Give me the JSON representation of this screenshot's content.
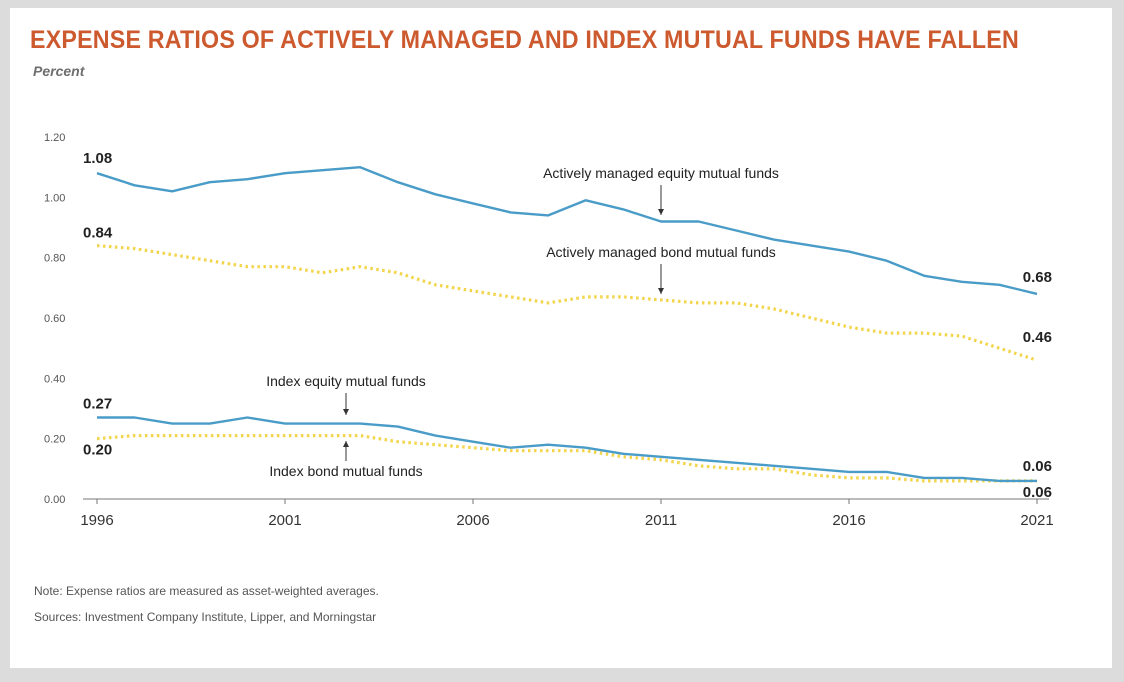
{
  "title": "EXPENSE RATIOS OF ACTIVELY MANAGED AND INDEX MUTUAL FUNDS HAVE FALLEN",
  "unit_label": "Percent",
  "note": "Note: Expense ratios are measured as asset-weighted averages.",
  "sources": "Sources: Investment Company Institute, Lipper, and Morningstar",
  "colors": {
    "title": "#cc5a2e",
    "solid_series": "#4a9cc8",
    "dotted_series": "#f2d54b"
  },
  "chart_data": {
    "type": "line",
    "title": "EXPENSE RATIOS OF ACTIVELY MANAGED AND INDEX MUTUAL FUNDS HAVE FALLEN",
    "ylabel": "Percent",
    "xlabel": "",
    "x": [
      1996,
      1997,
      1998,
      1999,
      2000,
      2001,
      2002,
      2003,
      2004,
      2005,
      2006,
      2007,
      2008,
      2009,
      2010,
      2011,
      2012,
      2013,
      2014,
      2015,
      2016,
      2017,
      2018,
      2019,
      2020,
      2021
    ],
    "xlim": [
      1996,
      2021
    ],
    "ylim": [
      0,
      1.2
    ],
    "x_ticks": [
      "1996",
      "2001",
      "2006",
      "2011",
      "2016",
      "2021"
    ],
    "y_ticks": [
      "0.00",
      "0.20",
      "0.40",
      "0.60",
      "0.80",
      "1.00",
      "1.20"
    ],
    "grid": false,
    "legend": "none",
    "series": [
      {
        "name": "Actively managed equity mutual funds",
        "style": "solid",
        "color": "#4a9cc8",
        "values": [
          1.08,
          1.04,
          1.02,
          1.05,
          1.06,
          1.08,
          1.09,
          1.1,
          1.05,
          1.01,
          0.98,
          0.95,
          0.94,
          0.99,
          0.96,
          0.92,
          0.92,
          0.89,
          0.86,
          0.84,
          0.82,
          0.79,
          0.74,
          0.72,
          0.71,
          0.68
        ],
        "start_label": "1.08",
        "end_label": "0.68"
      },
      {
        "name": "Actively managed bond mutual funds",
        "style": "dotted",
        "color": "#f2d54b",
        "values": [
          0.84,
          0.83,
          0.81,
          0.79,
          0.77,
          0.77,
          0.75,
          0.77,
          0.75,
          0.71,
          0.69,
          0.67,
          0.65,
          0.67,
          0.67,
          0.66,
          0.65,
          0.65,
          0.63,
          0.6,
          0.57,
          0.55,
          0.55,
          0.54,
          0.5,
          0.46
        ],
        "start_label": "0.84",
        "end_label": "0.46"
      },
      {
        "name": "Index equity mutual funds",
        "style": "solid",
        "color": "#4a9cc8",
        "values": [
          0.27,
          0.27,
          0.25,
          0.25,
          0.27,
          0.25,
          0.25,
          0.25,
          0.24,
          0.21,
          0.19,
          0.17,
          0.18,
          0.17,
          0.15,
          0.14,
          0.13,
          0.12,
          0.11,
          0.1,
          0.09,
          0.09,
          0.07,
          0.07,
          0.06,
          0.06
        ],
        "start_label": "0.27",
        "end_label": "0.06"
      },
      {
        "name": "Index bond mutual funds",
        "style": "dotted",
        "color": "#f2d54b",
        "values": [
          0.2,
          0.21,
          0.21,
          0.21,
          0.21,
          0.21,
          0.21,
          0.21,
          0.19,
          0.18,
          0.17,
          0.16,
          0.16,
          0.16,
          0.14,
          0.13,
          0.11,
          0.1,
          0.1,
          0.08,
          0.07,
          0.07,
          0.06,
          0.06,
          0.06,
          0.06
        ],
        "start_label": "0.20",
        "end_label": "0.06"
      }
    ],
    "annotations": [
      {
        "text": "Actively managed equity mutual funds",
        "series": 0,
        "x": 2011,
        "arrow": "down"
      },
      {
        "text": "Actively managed bond mutual funds",
        "series": 1,
        "x": 2011,
        "arrow": "down"
      },
      {
        "text": "Index equity mutual funds",
        "series": 2,
        "x": 2003,
        "arrow": "down"
      },
      {
        "text": "Index bond mutual funds",
        "series": 3,
        "x": 2003,
        "arrow": "up"
      }
    ]
  }
}
